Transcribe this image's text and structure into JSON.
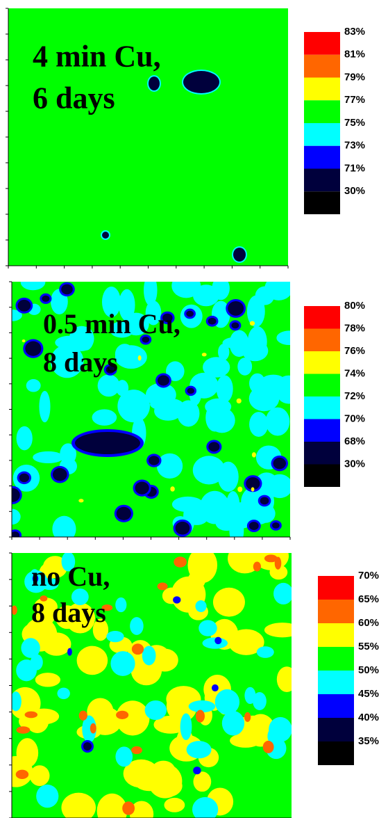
{
  "panels": [
    {
      "caption": [
        "4 min Cu,",
        "6 days"
      ],
      "legend": {
        "labels": [
          "83%",
          "81%",
          "79%",
          "77%",
          "75%",
          "73%",
          "71%",
          "30%"
        ],
        "colors": [
          "#ff0000",
          "#ff6600",
          "#ffff00",
          "#00ff00",
          "#00ffff",
          "#0000ff",
          "#00003c",
          "#000000"
        ]
      }
    },
    {
      "caption": [
        "0.5 min Cu,",
        "8 days"
      ],
      "legend": {
        "labels": [
          "80%",
          "78%",
          "76%",
          "74%",
          "72%",
          "70%",
          "68%",
          "30%"
        ],
        "colors": [
          "#ff0000",
          "#ff6600",
          "#ffff00",
          "#00ff00",
          "#00ffff",
          "#0000ff",
          "#00003c",
          "#000000"
        ]
      }
    },
    {
      "caption": [
        "no Cu,",
        "8 days"
      ],
      "legend": {
        "labels": [
          "70%",
          "65%",
          "60%",
          "55%",
          "50%",
          "45%",
          "40%",
          "35%"
        ],
        "colors": [
          "#ff0000",
          "#ff6600",
          "#ffff00",
          "#00ff00",
          "#00ffff",
          "#0000ff",
          "#00003c",
          "#000000"
        ]
      }
    }
  ]
}
